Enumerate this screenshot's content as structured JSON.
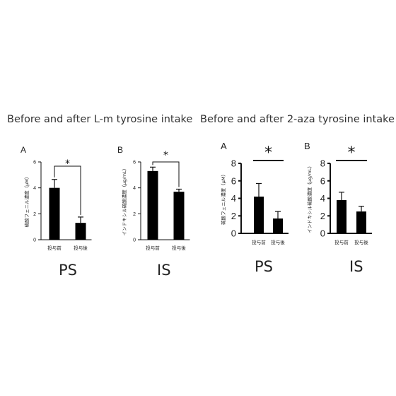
{
  "headings": {
    "left": "Before and after L-m tyrosine intake",
    "right": "Before and after 2-aza tyrosine intake"
  },
  "chart_data": [
    {
      "type": "bar",
      "panel_letter": "A",
      "ylabel": "硫酸フェニル濃度（μM）",
      "categories": [
        "投与前",
        "投与後"
      ],
      "values": [
        4.0,
        1.3
      ],
      "errors": [
        0.65,
        0.45
      ],
      "ylim": [
        0,
        6
      ],
      "yticks": [
        0,
        2,
        4,
        6
      ],
      "significance": "*",
      "name_label": "PS"
    },
    {
      "type": "bar",
      "panel_letter": "B",
      "ylabel": "インドキシル硫酸濃度（μg/mL）",
      "categories": [
        "投与前",
        "投与後"
      ],
      "values": [
        5.3,
        3.7
      ],
      "errors": [
        0.3,
        0.2
      ],
      "ylim": [
        0,
        6
      ],
      "yticks": [
        0,
        2,
        4,
        6
      ],
      "significance": "*",
      "name_label": "IS"
    },
    {
      "type": "bar",
      "panel_letter": "A",
      "ylabel": "硫酸フェニル濃度（μM）",
      "categories": [
        "投与前",
        "投与後"
      ],
      "values": [
        4.2,
        1.7
      ],
      "errors": [
        1.5,
        0.8
      ],
      "ylim": [
        0,
        8
      ],
      "yticks": [
        0,
        2,
        4,
        6,
        8
      ],
      "significance": "*",
      "name_label": "PS"
    },
    {
      "type": "bar",
      "panel_letter": "B",
      "ylabel": "インドキシル硫酸濃度（μg/mL）",
      "categories": [
        "投与前",
        "投与後"
      ],
      "values": [
        3.8,
        2.5
      ],
      "errors": [
        0.9,
        0.6
      ],
      "ylim": [
        0,
        8
      ],
      "yticks": [
        0,
        2,
        4,
        6,
        8
      ],
      "significance": "*",
      "name_label": "IS"
    }
  ]
}
